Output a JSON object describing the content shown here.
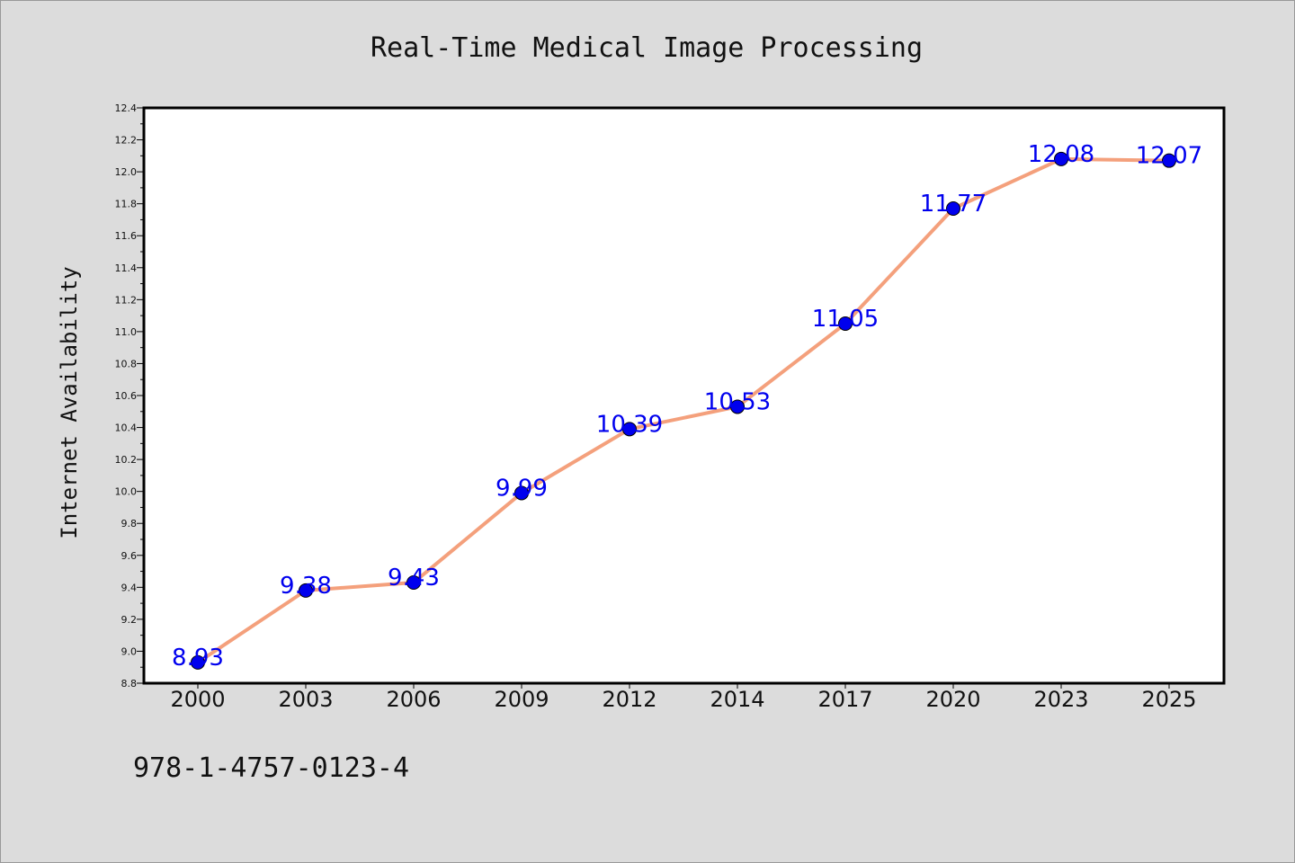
{
  "chart_data": {
    "type": "line",
    "title": "Real-Time Medical Image Processing",
    "xlabel": "",
    "ylabel": "Internet Availability",
    "categories": [
      "2000",
      "2003",
      "2006",
      "2009",
      "2012",
      "2014",
      "2017",
      "2020",
      "2023",
      "2025"
    ],
    "series": [
      {
        "values": [
          8.93,
          9.38,
          9.43,
          9.99,
          10.39,
          10.53,
          11.05,
          11.77,
          12.08,
          12.07
        ]
      }
    ],
    "data_labels": [
      "8.93",
      "9.38",
      "9.43",
      "9.99",
      "10.39",
      "10.53",
      "11.05",
      "11.77",
      "12.08",
      "12.07"
    ],
    "ylim": [
      8.8,
      12.4
    ],
    "yticks": [
      "8.8",
      "9.0",
      "9.2",
      "9.4",
      "9.6",
      "9.8",
      "10.0",
      "10.2",
      "10.4",
      "10.6",
      "10.8",
      "11.0",
      "11.2",
      "11.4",
      "11.6",
      "11.8",
      "12.0",
      "12.2",
      "12.4"
    ],
    "grid": false,
    "colors": {
      "line": "#f4a07c",
      "marker": "#0000ee",
      "label": "#0000ee",
      "background": "#dcdcdc",
      "plot_background": "#ffffff"
    }
  },
  "footer": {
    "isbn": "978-1-4757-0123-4"
  }
}
